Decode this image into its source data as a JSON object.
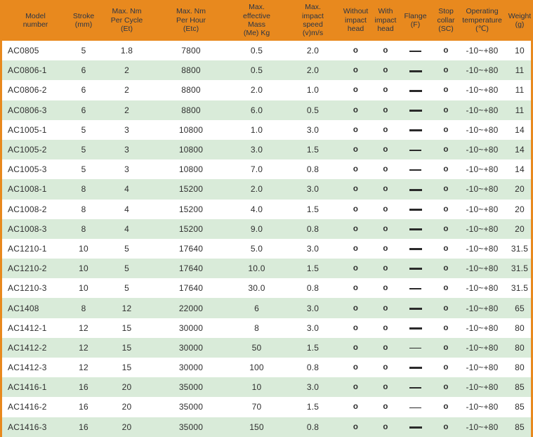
{
  "colors": {
    "header_bg": "#E8891E",
    "header_text": "#2B3546",
    "zebra_green": "#D9EBD9",
    "body_text": "#2E2E2E",
    "border_orange": "#E8891E"
  },
  "symbols": {
    "available": "o",
    "dash_thin_icon": "dash-thin",
    "dash_thick_icon": "dash-thick"
  },
  "table": {
    "columns": [
      {
        "id": "model",
        "label": "Model\nnumber"
      },
      {
        "id": "stroke_mm",
        "label": "Stroke\n(mm)"
      },
      {
        "id": "et",
        "label": "Max. Nm\nPer Cycle\n(Et)"
      },
      {
        "id": "etc",
        "label": "Max. Nm\nPer Hour\n(Etc)"
      },
      {
        "id": "me_kg",
        "label": "Max.\neffective\nMass\n(Me) Kg"
      },
      {
        "id": "v_ms",
        "label": "Max.\nimpact\nspeed\n(v)m/s"
      },
      {
        "id": "without_head",
        "label": "Without\nimpact\nhead"
      },
      {
        "id": "with_head",
        "label": "With\nimpact\nhead"
      },
      {
        "id": "flange_f",
        "label": "Flange\n(F)"
      },
      {
        "id": "stop_collar",
        "label": "Stop\ncollar\n(SC)"
      },
      {
        "id": "op_temp",
        "label": "Operating\ntemperature\n(℃)"
      },
      {
        "id": "weight_g",
        "label": "Weight\n(g)"
      }
    ],
    "rows": [
      {
        "model": "AC0805",
        "stroke_mm": "5",
        "et": "1.8",
        "etc": "7800",
        "me_kg": "0.5",
        "v_ms": "2.0",
        "without_head": "o",
        "with_head": "o",
        "flange_f": "dash-thin",
        "stop_collar": "o",
        "op_temp": "-10~+80",
        "weight_g": "10"
      },
      {
        "model": "AC0806-1",
        "stroke_mm": "6",
        "et": "2",
        "etc": "8800",
        "me_kg": "0.5",
        "v_ms": "2.0",
        "without_head": "o",
        "with_head": "o",
        "flange_f": "dash-thick",
        "stop_collar": "o",
        "op_temp": "-10~+80",
        "weight_g": "11"
      },
      {
        "model": "AC0806-2",
        "stroke_mm": "6",
        "et": "2",
        "etc": "8800",
        "me_kg": "2.0",
        "v_ms": "1.0",
        "without_head": "o",
        "with_head": "o",
        "flange_f": "dash-thick",
        "stop_collar": "o",
        "op_temp": "-10~+80",
        "weight_g": "11"
      },
      {
        "model": "AC0806-3",
        "stroke_mm": "6",
        "et": "2",
        "etc": "8800",
        "me_kg": "6.0",
        "v_ms": "0.5",
        "without_head": "o",
        "with_head": "o",
        "flange_f": "dash-thick",
        "stop_collar": "o",
        "op_temp": "-10~+80",
        "weight_g": "11"
      },
      {
        "model": "AC1005-1",
        "stroke_mm": "5",
        "et": "3",
        "etc": "10800",
        "me_kg": "1.0",
        "v_ms": "3.0",
        "without_head": "o",
        "with_head": "o",
        "flange_f": "dash-thick",
        "stop_collar": "o",
        "op_temp": "-10~+80",
        "weight_g": "14"
      },
      {
        "model": "AC1005-2",
        "stroke_mm": "5",
        "et": "3",
        "etc": "10800",
        "me_kg": "3.0",
        "v_ms": "1.5",
        "without_head": "o",
        "with_head": "o",
        "flange_f": "dash-thin",
        "stop_collar": "o",
        "op_temp": "-10~+80",
        "weight_g": "14"
      },
      {
        "model": "AC1005-3",
        "stroke_mm": "5",
        "et": "3",
        "etc": "10800",
        "me_kg": "7.0",
        "v_ms": "0.8",
        "without_head": "o",
        "with_head": "o",
        "flange_f": "dash-thin",
        "stop_collar": "o",
        "op_temp": "-10~+80",
        "weight_g": "14"
      },
      {
        "model": "AC1008-1",
        "stroke_mm": "8",
        "et": "4",
        "etc": "15200",
        "me_kg": "2.0",
        "v_ms": "3.0",
        "without_head": "o",
        "with_head": "o",
        "flange_f": "dash-thick",
        "stop_collar": "o",
        "op_temp": "-10~+80",
        "weight_g": "20"
      },
      {
        "model": "AC1008-2",
        "stroke_mm": "8",
        "et": "4",
        "etc": "15200",
        "me_kg": "4.0",
        "v_ms": "1.5",
        "without_head": "o",
        "with_head": "o",
        "flange_f": "dash-thick",
        "stop_collar": "o",
        "op_temp": "-10~+80",
        "weight_g": "20"
      },
      {
        "model": "AC1008-3",
        "stroke_mm": "8",
        "et": "4",
        "etc": "15200",
        "me_kg": "9.0",
        "v_ms": "0.8",
        "without_head": "o",
        "with_head": "o",
        "flange_f": "dash-thick",
        "stop_collar": "o",
        "op_temp": "-10~+80",
        "weight_g": "20"
      },
      {
        "model": "AC1210-1",
        "stroke_mm": "10",
        "et": "5",
        "etc": "17640",
        "me_kg": "5.0",
        "v_ms": "3.0",
        "without_head": "o",
        "with_head": "o",
        "flange_f": "dash-thick",
        "stop_collar": "o",
        "op_temp": "-10~+80",
        "weight_g": "31.5"
      },
      {
        "model": "AC1210-2",
        "stroke_mm": "10",
        "et": "5",
        "etc": "17640",
        "me_kg": "10.0",
        "v_ms": "1.5",
        "without_head": "o",
        "with_head": "o",
        "flange_f": "dash-thick",
        "stop_collar": "o",
        "op_temp": "-10~+80",
        "weight_g": "31.5"
      },
      {
        "model": "AC1210-3",
        "stroke_mm": "10",
        "et": "5",
        "etc": "17640",
        "me_kg": "30.0",
        "v_ms": "0.8",
        "without_head": "o",
        "with_head": "o",
        "flange_f": "dash-thin",
        "stop_collar": "o",
        "op_temp": "-10~+80",
        "weight_g": "31.5"
      },
      {
        "model": "AC1408",
        "stroke_mm": "8",
        "et": "12",
        "etc": "22000",
        "me_kg": "6",
        "v_ms": "3.0",
        "without_head": "o",
        "with_head": "o",
        "flange_f": "dash-thick",
        "stop_collar": "o",
        "op_temp": "-10~+80",
        "weight_g": "65"
      },
      {
        "model": "AC1412-1",
        "stroke_mm": "12",
        "et": "15",
        "etc": "30000",
        "me_kg": "8",
        "v_ms": "3.0",
        "without_head": "o",
        "with_head": "o",
        "flange_f": "dash-thick",
        "stop_collar": "o",
        "op_temp": "-10~+80",
        "weight_g": "80"
      },
      {
        "model": "AC1412-2",
        "stroke_mm": "12",
        "et": "15",
        "etc": "30000",
        "me_kg": "50",
        "v_ms": "1.5",
        "without_head": "o",
        "with_head": "o",
        "flange_f": "dash-thin",
        "stop_collar": "o",
        "op_temp": "-10~+80",
        "weight_g": "80"
      },
      {
        "model": "AC1412-3",
        "stroke_mm": "12",
        "et": "15",
        "etc": "30000",
        "me_kg": "100",
        "v_ms": "0.8",
        "without_head": "o",
        "with_head": "o",
        "flange_f": "dash-thick",
        "stop_collar": "o",
        "op_temp": "-10~+80",
        "weight_g": "80"
      },
      {
        "model": "AC1416-1",
        "stroke_mm": "16",
        "et": "20",
        "etc": "35000",
        "me_kg": "10",
        "v_ms": "3.0",
        "without_head": "o",
        "with_head": "o",
        "flange_f": "dash-thin",
        "stop_collar": "o",
        "op_temp": "-10~+80",
        "weight_g": "85"
      },
      {
        "model": "AC1416-2",
        "stroke_mm": "16",
        "et": "20",
        "etc": "35000",
        "me_kg": "70",
        "v_ms": "1.5",
        "without_head": "o",
        "with_head": "o",
        "flange_f": "dash-thin",
        "stop_collar": "o",
        "op_temp": "-10~+80",
        "weight_g": "85"
      },
      {
        "model": "AC1416-3",
        "stroke_mm": "16",
        "et": "20",
        "etc": "35000",
        "me_kg": "150",
        "v_ms": "0.8",
        "without_head": "o",
        "with_head": "o",
        "flange_f": "dash-thick",
        "stop_collar": "o",
        "op_temp": "-10~+80",
        "weight_g": "85"
      }
    ]
  }
}
